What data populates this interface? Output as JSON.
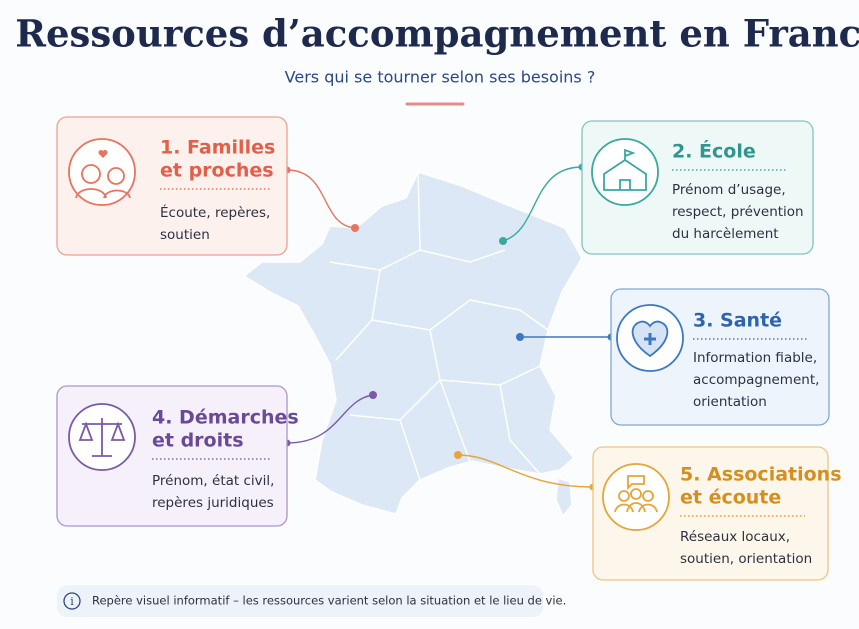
{
  "header": {
    "title": "Ressources d’accompagnement en France",
    "subtitle": "Vers qui se tourner selon ses besoins ?"
  },
  "cards": [
    {
      "title": [
        "1. Familles",
        "et proches"
      ],
      "text": [
        "Écoute, repères,",
        "soutien"
      ]
    },
    {
      "title": [
        "2. École"
      ],
      "text": [
        "Prénom d’usage,",
        "respect, prévention",
        "du harcèlement"
      ]
    },
    {
      "title": [
        "3. Santé"
      ],
      "text": [
        "Information fiable,",
        "accompagnement,",
        "orientation"
      ]
    },
    {
      "title": [
        "4. Démarches",
        "et droits"
      ],
      "text": [
        "Prénom, état civil,",
        "repères juridiques"
      ]
    },
    {
      "title": [
        "5. Associations",
        "et écoute"
      ],
      "text": [
        "Réseaux locaux,",
        "soutien, orientation"
      ]
    }
  ],
  "footer": {
    "note": "Repère visuel informatif – les ressources varient selon la situation et le lieu de vie."
  }
}
